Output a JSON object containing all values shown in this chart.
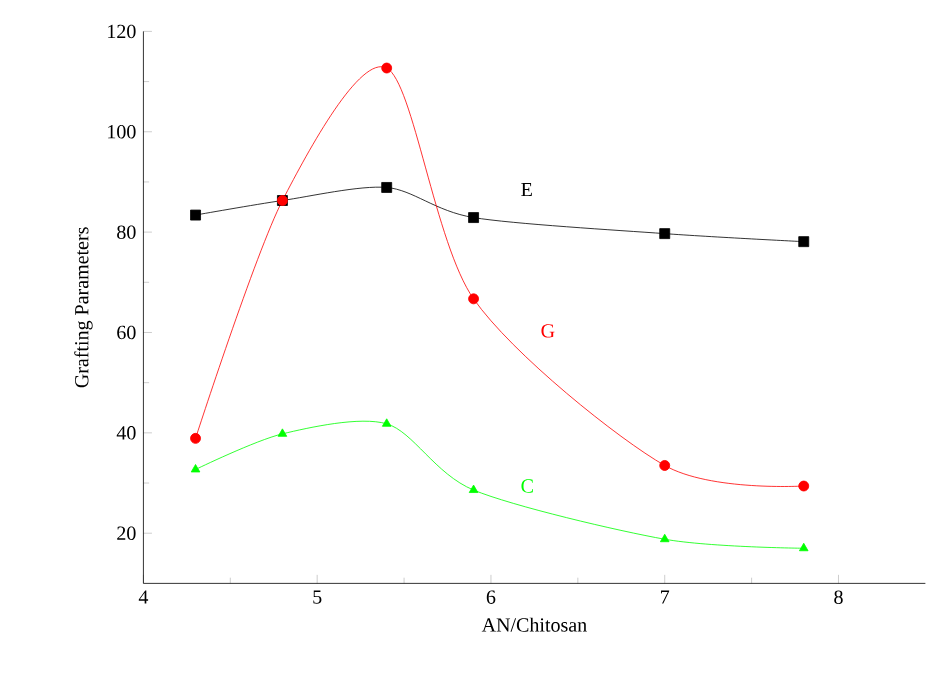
{
  "chart_data": {
    "type": "line",
    "xlabel": "AN/Chitosan",
    "ylabel": "Grafting Parameters",
    "x": [
      4.3,
      4.8,
      5.4,
      5.9,
      7.0,
      7.8
    ],
    "series": [
      {
        "name": "E",
        "color": "#000000",
        "marker": "square",
        "values": [
          83.4,
          86.3,
          88.9,
          82.9,
          79.7,
          78.1
        ]
      },
      {
        "name": "G",
        "color": "#ff0000",
        "marker": "circle",
        "values": [
          38.9,
          86.3,
          112.7,
          66.7,
          33.5,
          29.4
        ]
      },
      {
        "name": "C",
        "color": "#00ff00",
        "marker": "triangle",
        "values": [
          32.7,
          39.8,
          41.8,
          28.6,
          18.8,
          17.0
        ]
      }
    ],
    "xlim": [
      4,
      8.5
    ],
    "xticks": [
      4,
      5,
      6,
      7,
      8
    ],
    "ylim": [
      10,
      120
    ],
    "yticks": [
      20,
      40,
      60,
      80,
      100,
      120
    ],
    "grid": false,
    "legend": false
  }
}
